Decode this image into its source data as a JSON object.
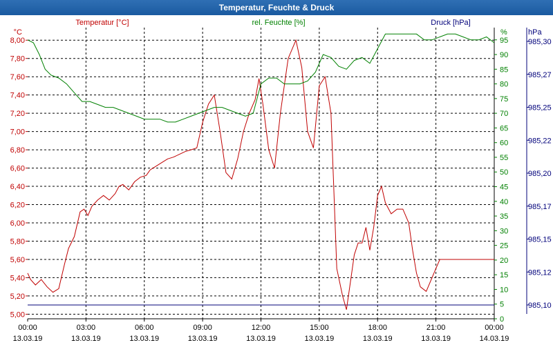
{
  "window": {
    "title": "Temperatur, Feuchte & Druck"
  },
  "colors": {
    "temperature": "#c00000",
    "humidity": "#008000",
    "pressure": "#00007a",
    "grid": "#000000",
    "baseline": "#00007a"
  },
  "chart_data": {
    "type": "line",
    "legend": {
      "temperature": "Temperatur [°C]",
      "humidity": "rel. Feuchte [%]",
      "pressure": "Druck [hPa]"
    },
    "units": {
      "left": "°C",
      "right_humidity": "%",
      "right_pressure": "hPa"
    },
    "x_hours": [
      0,
      24
    ],
    "x_ticks": [
      {
        "time": "00:00",
        "date": "13.03.19"
      },
      {
        "time": "03:00",
        "date": "13.03.19"
      },
      {
        "time": "06:00",
        "date": "13.03.19"
      },
      {
        "time": "09:00",
        "date": "13.03.19"
      },
      {
        "time": "12:00",
        "date": "13.03.19"
      },
      {
        "time": "15:00",
        "date": "13.03.19"
      },
      {
        "time": "18:00",
        "date": "13.03.19"
      },
      {
        "time": "21:00",
        "date": "13.03.19"
      },
      {
        "time": "00:00",
        "date": "14.03.19"
      }
    ],
    "y_temperature": {
      "ylim": [
        4.95,
        8.1
      ],
      "ticks": [
        "5,00",
        "5,20",
        "5,40",
        "5,60",
        "5,80",
        "6,00",
        "6,20",
        "6,40",
        "6,60",
        "6,80",
        "7,00",
        "7,20",
        "7,40",
        "7,60",
        "7,80",
        "8,00"
      ]
    },
    "y_humidity": {
      "ylim": [
        0,
        98
      ],
      "ticks": [
        "0",
        "5",
        "10",
        "15",
        "20",
        "25",
        "30",
        "35",
        "40",
        "45",
        "50",
        "55",
        "60",
        "65",
        "70",
        "75",
        "80",
        "85",
        "90",
        "95"
      ]
    },
    "y_pressure": {
      "ticks": [
        "985,10",
        "985,12",
        "985,15",
        "985,17",
        "985,20",
        "985,22",
        "985,25",
        "985,27",
        "985,30"
      ]
    },
    "series": [
      {
        "name": "Temperatur [°C]",
        "axis": "temperature",
        "x": [
          0,
          0.15,
          0.4,
          0.7,
          1.0,
          1.3,
          1.6,
          1.9,
          2.1,
          2.4,
          2.7,
          2.9,
          3.1,
          3.3,
          3.6,
          3.9,
          4.2,
          4.5,
          4.7,
          4.9,
          5.2,
          5.5,
          5.8,
          6.1,
          6.3,
          6.6,
          6.9,
          7.2,
          7.5,
          7.8,
          8.1,
          8.4,
          8.7,
          9.0,
          9.3,
          9.6,
          9.9,
          10.2,
          10.5,
          10.8,
          11.1,
          11.4,
          11.7,
          11.9,
          12.1,
          12.4,
          12.7,
          13.0,
          13.4,
          13.8,
          14.1,
          14.4,
          14.7,
          15.0,
          15.3,
          15.6,
          15.9,
          16.2,
          16.4,
          16.6,
          16.8,
          17.0,
          17.2,
          17.4,
          17.6,
          17.8,
          18.0,
          18.2,
          18.4,
          18.7,
          19.0,
          19.3,
          19.6,
          19.8,
          20.0,
          20.2,
          20.5,
          20.8,
          21.0,
          21.2,
          21.5,
          21.7,
          21.9,
          22.2,
          22.5,
          22.8,
          23.0,
          23.3,
          23.6,
          24.0
        ],
        "values": [
          5.45,
          5.38,
          5.32,
          5.38,
          5.3,
          5.24,
          5.28,
          5.55,
          5.72,
          5.85,
          6.12,
          6.15,
          6.08,
          6.18,
          6.25,
          6.3,
          6.25,
          6.32,
          6.4,
          6.42,
          6.36,
          6.45,
          6.5,
          6.52,
          6.58,
          6.62,
          6.66,
          6.7,
          6.72,
          6.75,
          6.78,
          6.8,
          6.82,
          7.1,
          7.3,
          7.4,
          7.0,
          6.55,
          6.48,
          6.7,
          7.0,
          7.2,
          7.35,
          7.58,
          7.3,
          6.8,
          6.6,
          7.2,
          7.8,
          8.0,
          7.7,
          7.0,
          6.82,
          7.5,
          7.6,
          7.2,
          5.5,
          5.2,
          5.05,
          5.35,
          5.65,
          5.78,
          5.78,
          5.95,
          5.7,
          5.95,
          6.3,
          6.4,
          6.22,
          6.1,
          6.15,
          6.15,
          6.0,
          5.7,
          5.45,
          5.3,
          5.25,
          5.4,
          5.5,
          5.6,
          5.6,
          5.6,
          5.6,
          5.6,
          5.6,
          5.6,
          5.6,
          5.6,
          5.6,
          5.6
        ]
      },
      {
        "name": "rel. Feuchte [%]",
        "axis": "humidity",
        "x": [
          0,
          0.3,
          0.6,
          0.9,
          1.2,
          1.6,
          2.0,
          2.4,
          2.8,
          3.2,
          3.6,
          4.0,
          4.4,
          4.8,
          5.2,
          5.6,
          6.0,
          6.4,
          6.8,
          7.2,
          7.6,
          8.0,
          8.4,
          8.8,
          9.2,
          9.6,
          10.0,
          10.4,
          10.8,
          11.2,
          11.6,
          12.0,
          12.4,
          12.8,
          13.2,
          13.6,
          14.0,
          14.4,
          14.8,
          15.2,
          15.6,
          16.0,
          16.4,
          16.8,
          17.2,
          17.6,
          18.0,
          18.4,
          18.8,
          19.2,
          19.6,
          20.0,
          20.4,
          20.8,
          21.2,
          21.6,
          22.0,
          22.4,
          22.8,
          23.2,
          23.6,
          24.0
        ],
        "values": [
          95,
          94,
          90,
          85,
          83,
          82,
          80,
          77,
          74,
          74,
          73,
          72,
          72,
          71,
          70,
          69,
          68,
          68,
          68,
          67,
          67,
          68,
          69,
          70,
          71,
          72,
          72,
          71,
          70,
          69,
          70,
          80,
          82,
          82,
          80,
          80,
          80,
          81,
          84,
          90,
          89,
          86,
          85,
          88,
          89,
          87,
          92,
          97,
          97,
          97,
          97,
          97,
          95,
          95,
          96,
          97,
          97,
          96,
          95,
          95,
          96,
          94
        ]
      }
    ],
    "pressure_baseline_value": "985,10"
  }
}
